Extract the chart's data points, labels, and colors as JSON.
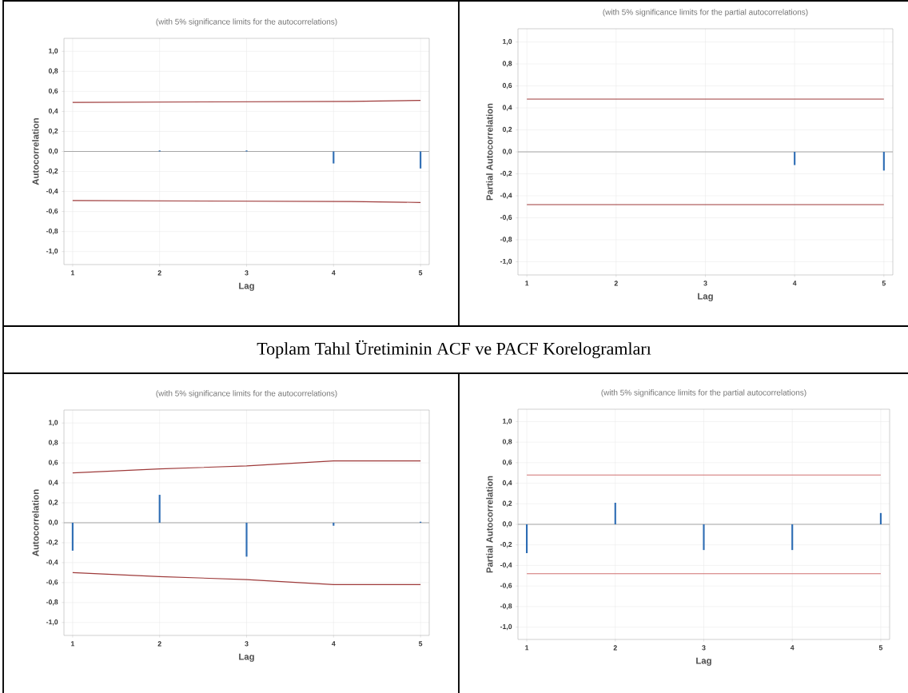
{
  "chart_data": [
    {
      "type": "bar",
      "title": "(with 5% significance limits for the autocorrelations)",
      "xlabel": "Lag",
      "ylabel": "Autocorrelation",
      "x": [
        1,
        2,
        3,
        4,
        5
      ],
      "xlim": [
        0.9,
        5.1
      ],
      "xticks": [
        1,
        2,
        3,
        4,
        5
      ],
      "ylim": [
        -1.13,
        1.13
      ],
      "yticks": [
        {
          "value": -1.0,
          "label": "-1,0"
        },
        {
          "value": -0.8,
          "label": "-0,8"
        },
        {
          "value": -0.6,
          "label": "-0,6"
        },
        {
          "value": -0.4,
          "label": "-0,4"
        },
        {
          "value": -0.2,
          "label": "-0,2"
        },
        {
          "value": 0.0,
          "label": "0,0"
        },
        {
          "value": 0.2,
          "label": "0,2"
        },
        {
          "value": 0.4,
          "label": "0,4"
        },
        {
          "value": 0.6,
          "label": "0,6"
        },
        {
          "value": 0.8,
          "label": "0,8"
        },
        {
          "value": 1.0,
          "label": "1,0"
        }
      ],
      "grid": true,
      "ref_lines": [
        {
          "axis": "y",
          "value": 0,
          "color": "#a0a0a0"
        }
      ],
      "series": [
        {
          "type": "bar",
          "color": "#2e6db4",
          "values": [
            0.0,
            0.01,
            0.01,
            -0.12,
            -0.17
          ]
        },
        {
          "type": "line",
          "color": "#9e3a3a",
          "x": [
            1,
            4.2,
            5
          ],
          "values": [
            0.49,
            0.5,
            0.51
          ]
        },
        {
          "type": "line",
          "color": "#9e3a3a",
          "x": [
            1,
            4.2,
            5
          ],
          "values": [
            -0.49,
            -0.5,
            -0.51
          ]
        }
      ]
    },
    {
      "type": "bar",
      "title": "(with 5% significance limits for the partial autocorrelations)",
      "xlabel": "Lag",
      "ylabel": "Partial Autocorrelation",
      "x": [
        1,
        2,
        3,
        4,
        5
      ],
      "xlim": [
        0.9,
        5.1
      ],
      "xticks": [
        1,
        2,
        3,
        4,
        5
      ],
      "ylim": [
        -1.12,
        1.12
      ],
      "yticks": [
        {
          "value": -1.0,
          "label": "-1,0"
        },
        {
          "value": -0.8,
          "label": "-0,8"
        },
        {
          "value": -0.6,
          "label": "-0,6"
        },
        {
          "value": -0.4,
          "label": "-0,4"
        },
        {
          "value": -0.2,
          "label": "-0,2"
        },
        {
          "value": 0.0,
          "label": "0,0"
        },
        {
          "value": 0.2,
          "label": "0,2"
        },
        {
          "value": 0.4,
          "label": "0,4"
        },
        {
          "value": 0.6,
          "label": "0,6"
        },
        {
          "value": 0.8,
          "label": "0,8"
        },
        {
          "value": 1.0,
          "label": "1,0"
        }
      ],
      "grid": true,
      "ref_lines": [
        {
          "axis": "y",
          "value": 0,
          "color": "#a0a0a0"
        }
      ],
      "series": [
        {
          "type": "bar",
          "color": "#2e6db4",
          "values": [
            0.0,
            0.0,
            0.0,
            -0.12,
            -0.17
          ]
        },
        {
          "type": "line",
          "color": "#9e3a3a",
          "x": [
            1,
            5
          ],
          "values": [
            0.48,
            0.48
          ]
        },
        {
          "type": "line",
          "color": "#9e3a3a",
          "x": [
            1,
            5
          ],
          "values": [
            -0.48,
            -0.48
          ]
        }
      ]
    },
    {
      "type": "other",
      "annotations": [
        "Toplam Tahıl Üretiminin ACF ve PACF Korelogramları"
      ]
    },
    {
      "type": "bar",
      "title": "(with 5% significance limits for the autocorrelations)",
      "xlabel": "Lag",
      "ylabel": "Autocorrelation",
      "x": [
        1,
        2,
        3,
        4,
        5
      ],
      "xlim": [
        0.9,
        5.1
      ],
      "xticks": [
        1,
        2,
        3,
        4,
        5
      ],
      "ylim": [
        -1.13,
        1.13
      ],
      "yticks": [
        {
          "value": -1.0,
          "label": "-1,0"
        },
        {
          "value": -0.8,
          "label": "-0,8"
        },
        {
          "value": -0.6,
          "label": "-0,6"
        },
        {
          "value": -0.4,
          "label": "-0,4"
        },
        {
          "value": -0.2,
          "label": "-0,2"
        },
        {
          "value": 0.0,
          "label": "0,0"
        },
        {
          "value": 0.2,
          "label": "0,2"
        },
        {
          "value": 0.4,
          "label": "0,4"
        },
        {
          "value": 0.6,
          "label": "0,6"
        },
        {
          "value": 0.8,
          "label": "0,8"
        },
        {
          "value": 1.0,
          "label": "1,0"
        }
      ],
      "grid": true,
      "ref_lines": [
        {
          "axis": "y",
          "value": 0,
          "color": "#a0a0a0"
        }
      ],
      "series": [
        {
          "type": "bar",
          "color": "#2e6db4",
          "values": [
            -0.28,
            0.28,
            -0.34,
            -0.03,
            0.01
          ]
        },
        {
          "type": "line",
          "color": "#9e3a3a",
          "x": [
            1,
            2,
            3,
            4,
            5
          ],
          "values": [
            0.5,
            0.54,
            0.57,
            0.62,
            0.62
          ]
        },
        {
          "type": "line",
          "color": "#9e3a3a",
          "x": [
            1,
            2,
            3,
            4,
            5
          ],
          "values": [
            -0.5,
            -0.54,
            -0.57,
            -0.62,
            -0.62
          ]
        }
      ]
    },
    {
      "type": "bar",
      "title": "(with 5% significance limits for the partial autocorrelations)",
      "xlabel": "Lag",
      "ylabel": "Partial Autocorrelation",
      "x": [
        1,
        2,
        3,
        4,
        5
      ],
      "xlim": [
        0.9,
        5.1
      ],
      "xticks": [
        1,
        2,
        3,
        4,
        5
      ],
      "ylim": [
        -1.12,
        1.12
      ],
      "yticks": [
        {
          "value": -1.0,
          "label": "-1,0"
        },
        {
          "value": -0.8,
          "label": "-0,8"
        },
        {
          "value": -0.6,
          "label": "-0,6"
        },
        {
          "value": -0.4,
          "label": "-0,4"
        },
        {
          "value": -0.2,
          "label": "-0,2"
        },
        {
          "value": 0.0,
          "label": "0,0"
        },
        {
          "value": 0.2,
          "label": "0,2"
        },
        {
          "value": 0.4,
          "label": "0,4"
        },
        {
          "value": 0.6,
          "label": "0,6"
        },
        {
          "value": 0.8,
          "label": "0,8"
        },
        {
          "value": 1.0,
          "label": "1,0"
        }
      ],
      "grid": true,
      "ref_lines": [
        {
          "axis": "y",
          "value": 0,
          "color": "#a0a0a0"
        }
      ],
      "series": [
        {
          "type": "bar",
          "color": "#2e6db4",
          "values": [
            -0.28,
            0.21,
            -0.25,
            -0.25,
            0.11
          ]
        },
        {
          "type": "line",
          "color": "#d07070",
          "x": [
            1,
            5
          ],
          "values": [
            0.48,
            0.48
          ]
        },
        {
          "type": "line",
          "color": "#d07070",
          "x": [
            1,
            5
          ],
          "values": [
            -0.48,
            -0.48
          ]
        }
      ]
    }
  ]
}
